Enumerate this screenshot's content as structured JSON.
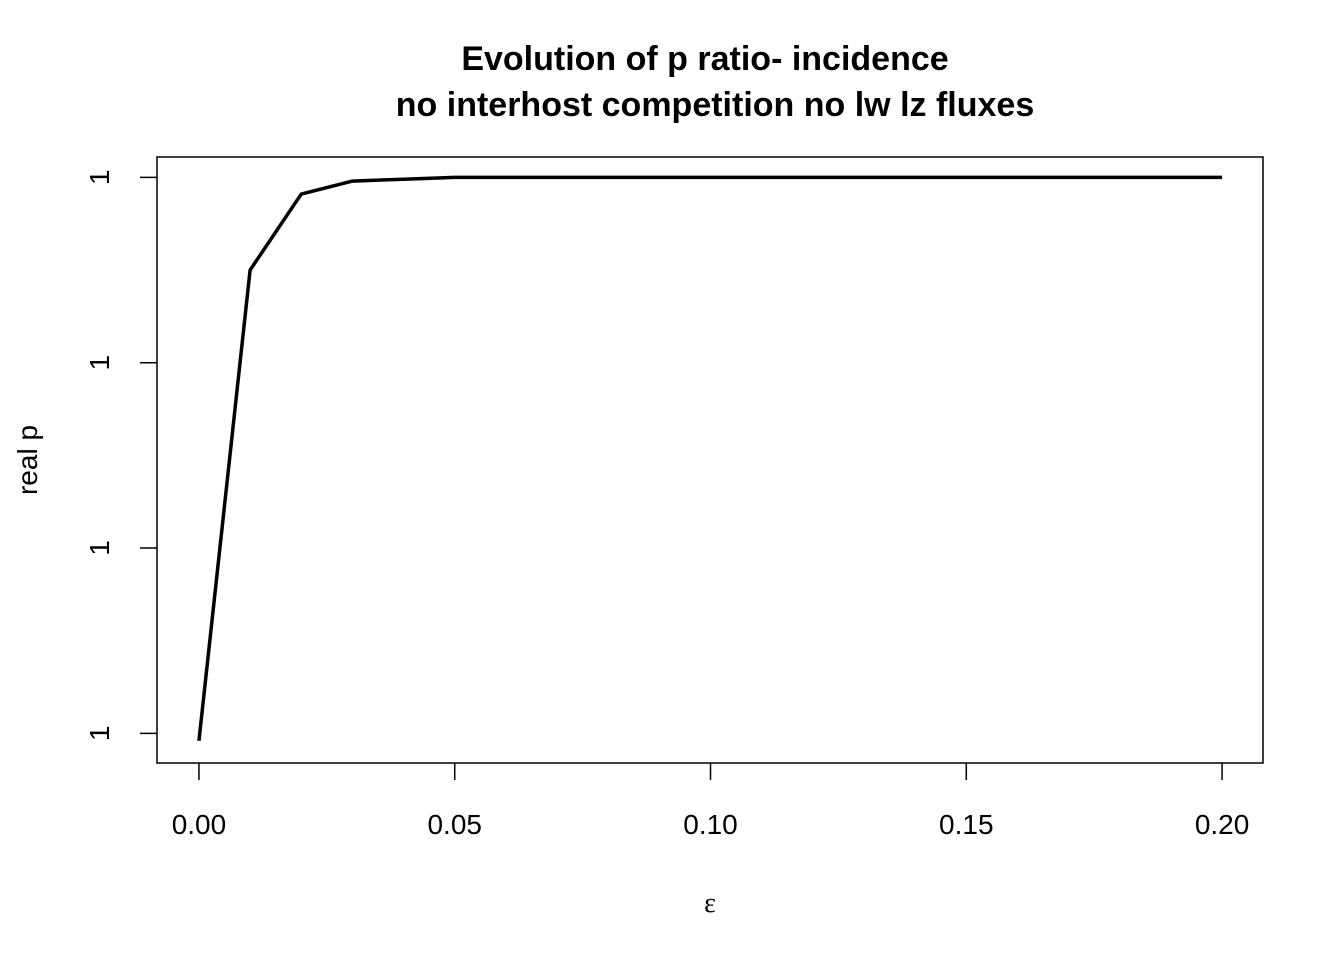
{
  "chart_data": {
    "type": "line",
    "title": [
      "Evolution of p ratio- incidence",
      "no interhost competition no lw lz fluxes"
    ],
    "x_label": "ε",
    "y_label": "real p",
    "x": [
      0,
      0.01,
      0.02,
      0.03,
      0.04,
      0.05,
      0.06,
      0.07,
      0.08,
      0.09,
      0.1,
      0.11,
      0.12,
      0.13,
      0.14,
      0.15,
      0.16,
      0.17,
      0.18,
      0.19,
      0.2
    ],
    "series": [
      {
        "color": "#000000",
        "values": [
          0.9999999696,
          0.999999995,
          0.9999999991,
          0.9999999998,
          0.9999999999,
          1,
          1,
          1,
          1,
          1,
          1,
          1,
          1,
          1,
          1,
          1,
          1,
          1,
          1,
          1,
          1
        ]
      }
    ],
    "xlim": [
      -0.0082,
      0.208
    ],
    "ylim": [
      0.9999999684,
      1.0000000011
    ],
    "xticks": [
      {
        "value": 0,
        "label": "0.00"
      },
      {
        "value": 0.05,
        "label": "0.05"
      },
      {
        "value": 0.1,
        "label": "0.10"
      },
      {
        "value": 0.15,
        "label": "0.15"
      },
      {
        "value": 0.2,
        "label": "0.20"
      }
    ],
    "yticks": [
      {
        "value": 0.99999997,
        "label": "1"
      },
      {
        "value": 0.99999998,
        "label": "1"
      },
      {
        "value": 0.99999999,
        "label": "1"
      },
      1
    ]
  }
}
